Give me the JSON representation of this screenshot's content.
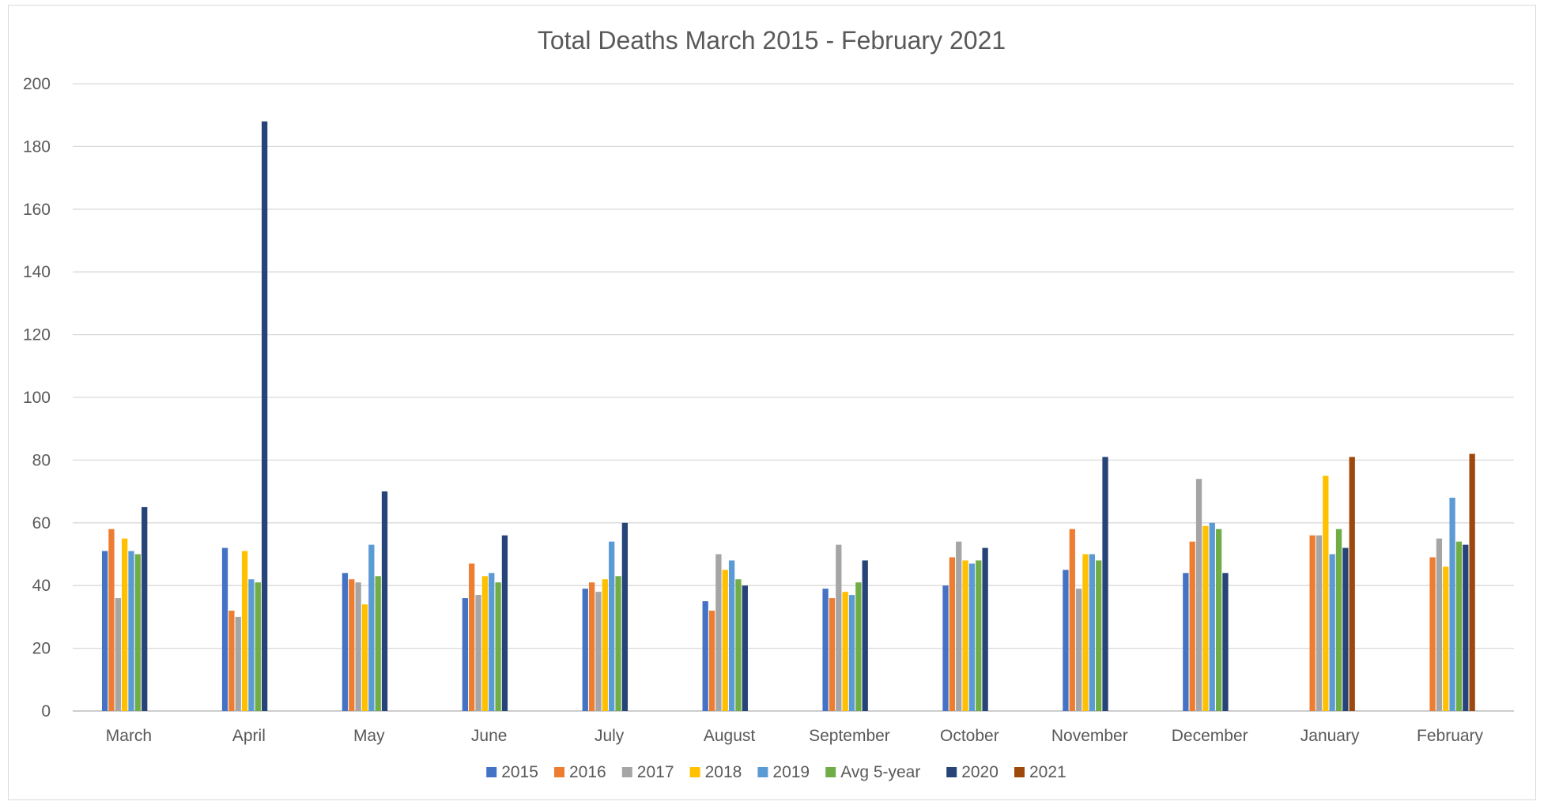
{
  "chart_data": {
    "type": "bar",
    "title": "Total Deaths March 2015 - February 2021",
    "xlabel": "",
    "ylabel": "",
    "ylim": [
      0,
      200
    ],
    "yticks": [
      0,
      20,
      40,
      60,
      80,
      100,
      120,
      140,
      160,
      180,
      200
    ],
    "grid": true,
    "legend_position": "bottom",
    "categories": [
      "March",
      "April",
      "May",
      "June",
      "July",
      "August",
      "September",
      "October",
      "November",
      "December",
      "January",
      "February"
    ],
    "series": [
      {
        "name": "2015",
        "color": "#4472C4",
        "values": [
          51,
          52,
          44,
          36,
          39,
          35,
          39,
          40,
          45,
          44,
          null,
          null
        ]
      },
      {
        "name": "2016",
        "color": "#ED7D31",
        "values": [
          58,
          32,
          42,
          47,
          41,
          32,
          36,
          49,
          58,
          54,
          56,
          49
        ]
      },
      {
        "name": "2017",
        "color": "#A5A5A5",
        "values": [
          36,
          30,
          41,
          37,
          38,
          50,
          53,
          54,
          39,
          74,
          56,
          55
        ]
      },
      {
        "name": "2018",
        "color": "#FFC000",
        "values": [
          55,
          51,
          34,
          43,
          42,
          45,
          38,
          48,
          50,
          59,
          75,
          46
        ]
      },
      {
        "name": "2019",
        "color": "#5B9BD5",
        "values": [
          51,
          42,
          53,
          44,
          54,
          48,
          37,
          47,
          50,
          60,
          50,
          68
        ]
      },
      {
        "name": "Avg 5-year",
        "color": "#70AD47",
        "values": [
          50,
          41,
          43,
          41,
          43,
          42,
          41,
          48,
          48,
          58,
          58,
          54
        ]
      },
      {
        "name": "2020",
        "color": "#264478",
        "values": [
          65,
          188,
          70,
          56,
          60,
          40,
          48,
          52,
          81,
          44,
          52,
          53
        ]
      },
      {
        "name": "2021",
        "color": "#9E480E",
        "values": [
          null,
          null,
          null,
          null,
          null,
          null,
          null,
          null,
          null,
          null,
          81,
          82
        ]
      }
    ]
  }
}
